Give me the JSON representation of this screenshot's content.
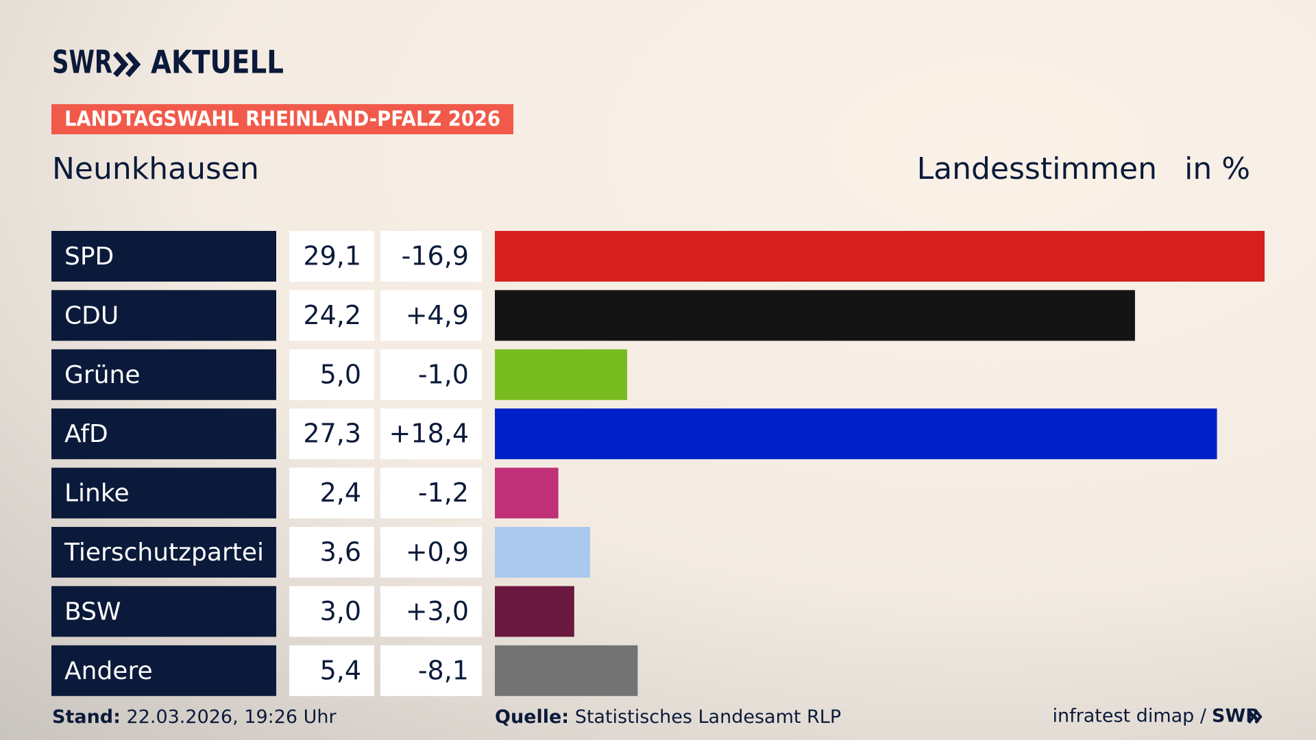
{
  "chart_data": {
    "type": "bar",
    "logo": "SWR",
    "logo_text": "AKTUELL",
    "title": "LANDTAGSWAHL RHEINLAND-PFALZ 2026",
    "subtitle": "Neunkhausen",
    "value_axis_label": "Landesstimmen",
    "unit_label": "in %",
    "categories": [
      "SPD",
      "CDU",
      "Grüne",
      "AfD",
      "Linke",
      "Tierschutzpartei",
      "BSW",
      "Andere"
    ],
    "values": [
      29.1,
      24.2,
      5.0,
      27.3,
      2.4,
      3.6,
      3.0,
      5.4
    ],
    "value_labels": [
      "29,1",
      "24,2",
      "5,0",
      "27,3",
      "2,4",
      "3,6",
      "3,0",
      "5,4"
    ],
    "changes": [
      -16.9,
      4.9,
      -1.0,
      18.4,
      -1.2,
      0.9,
      3.0,
      -8.1
    ],
    "change_labels": [
      "-16,9",
      "+4,9",
      "-1,0",
      "+18,4",
      "-1,2",
      "+0,9",
      "+3,0",
      "-8,1"
    ],
    "colors": [
      "#d61f1f",
      "#141414",
      "#78bb1e",
      "#0021c9",
      "#bf3078",
      "#abc8ef",
      "#6a183f",
      "#737373"
    ],
    "xlim": [
      0,
      29.1
    ],
    "stand_label": "Stand:",
    "stand": "22.03.2026, 19:26 Uhr",
    "source_label": "Quelle:",
    "source": "Statistisches Landesamt RLP",
    "credit": "infratest dimap /",
    "credit_brand": "SWR"
  }
}
